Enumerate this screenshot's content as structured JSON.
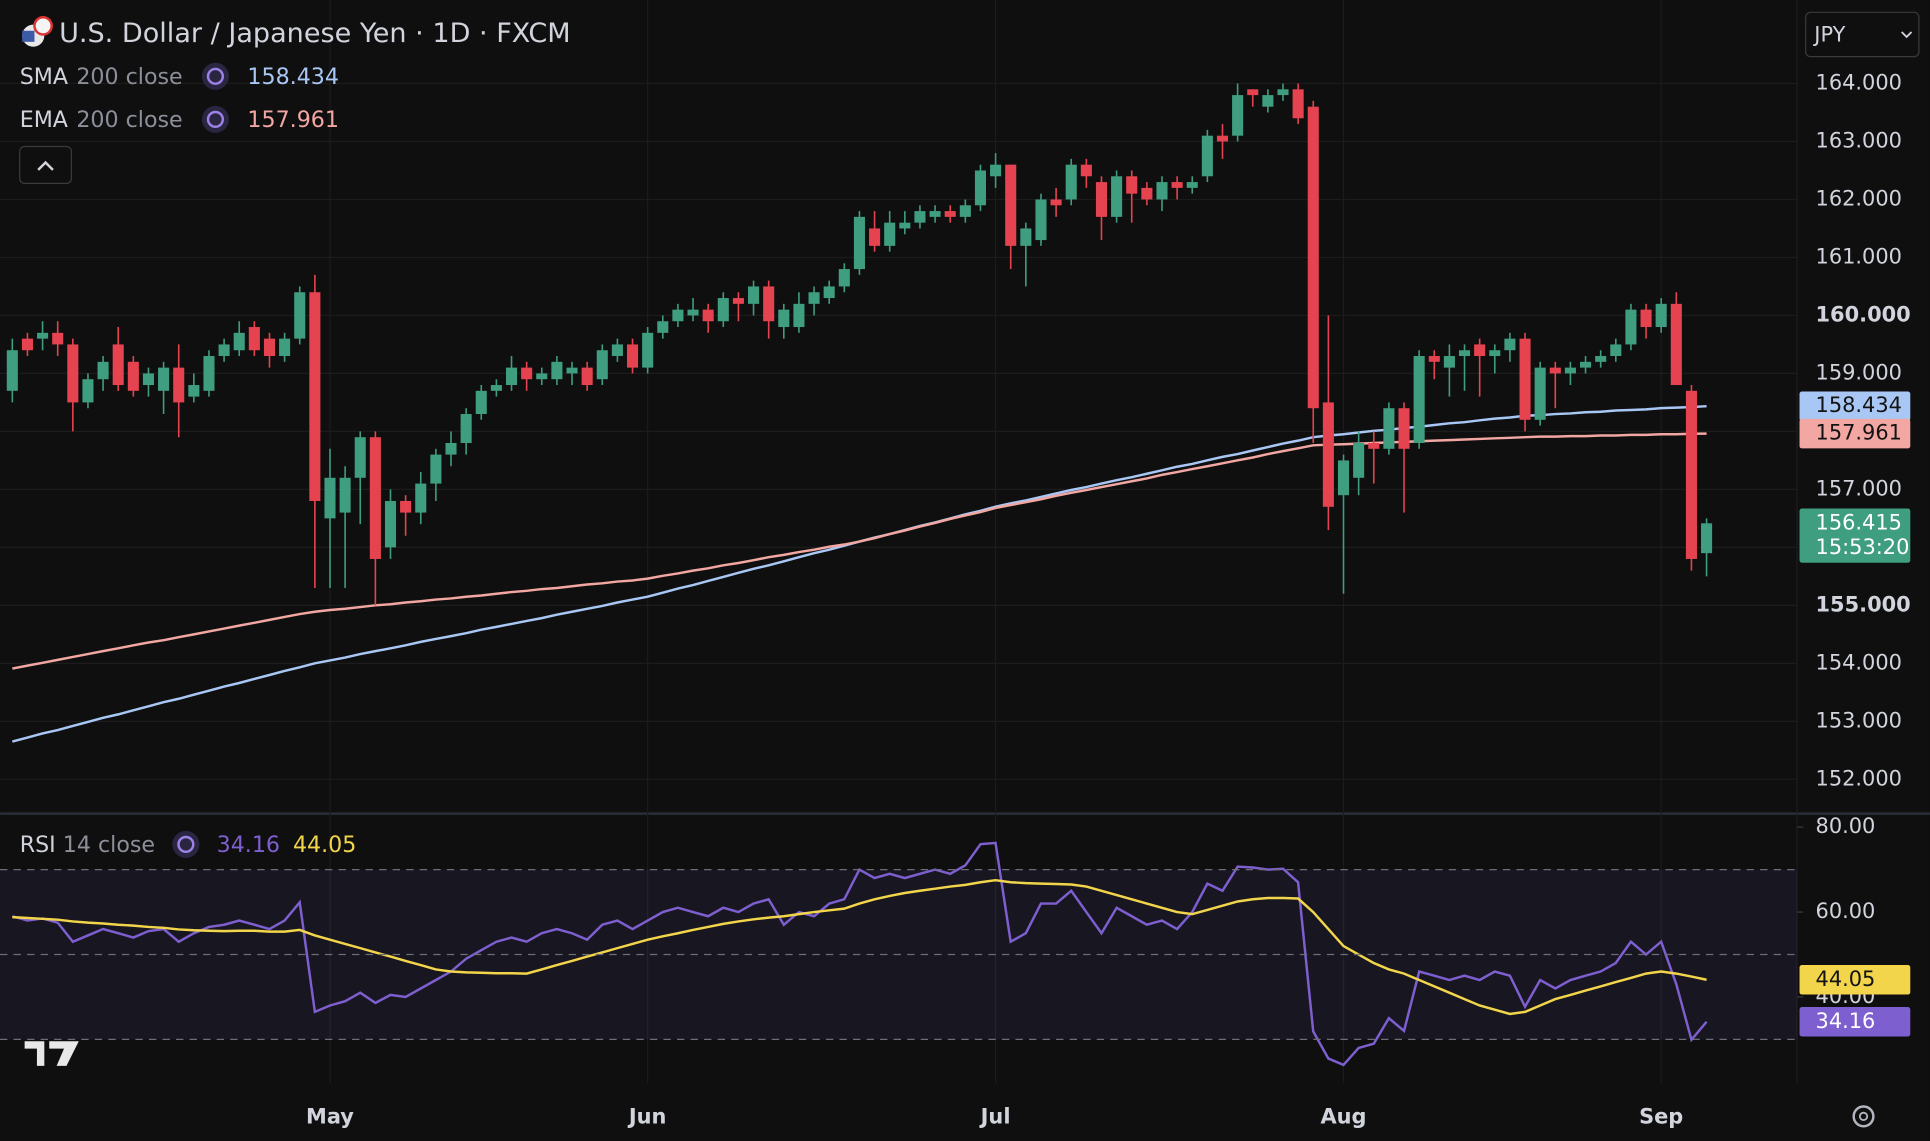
{
  "chart_data": {
    "type": "candlestick",
    "title": "U.S. Dollar / Japanese Yen · 1D · FXCM",
    "currency": "JPY",
    "countdown": "15:53:20",
    "up_color": "#3f9d80",
    "down_color": "#e5434f",
    "grid": true,
    "ylim": [
      151.43,
      165.44
    ],
    "yticks": [
      {
        "value": 152,
        "label": "152.000"
      },
      {
        "value": 153,
        "label": "153.000"
      },
      {
        "value": 154,
        "label": "154.000"
      },
      {
        "value": 155,
        "label": "155.000"
      },
      {
        "value": 156,
        "label": "156.000"
      },
      {
        "value": 157,
        "label": "157.000"
      },
      {
        "value": 158,
        "label": "158.000"
      },
      {
        "value": 159,
        "label": "159.000"
      },
      {
        "value": 160,
        "label": "160.000"
      },
      {
        "value": 161,
        "label": "161.000"
      },
      {
        "value": 162,
        "label": "162.000"
      },
      {
        "value": 163,
        "label": "163.000"
      },
      {
        "value": 164,
        "label": "164.000"
      }
    ],
    "categories": [
      null,
      null,
      null,
      null,
      null,
      null,
      null,
      null,
      null,
      null,
      null,
      null,
      null,
      null,
      null,
      null,
      null,
      null,
      null,
      null,
      null,
      "May",
      null,
      null,
      null,
      null,
      null,
      null,
      null,
      null,
      null,
      null,
      null,
      null,
      null,
      null,
      null,
      null,
      null,
      null,
      null,
      null,
      "Jun",
      null,
      null,
      null,
      null,
      null,
      null,
      null,
      null,
      null,
      null,
      null,
      null,
      null,
      null,
      null,
      null,
      null,
      null,
      null,
      null,
      null,
      null,
      "Jul",
      null,
      null,
      null,
      null,
      null,
      null,
      null,
      null,
      null,
      null,
      null,
      null,
      null,
      null,
      null,
      null,
      null,
      null,
      null,
      null,
      null,
      null,
      "Aug",
      null,
      null,
      null,
      null,
      null,
      null,
      null,
      null,
      null,
      null,
      null,
      null,
      null,
      null,
      null,
      null,
      null,
      null,
      null,
      null,
      "Sep",
      null,
      null,
      null
    ],
    "open": [
      158.7,
      159.6,
      159.6,
      159.7,
      159.5,
      158.5,
      158.9,
      159.5,
      159.2,
      158.8,
      158.7,
      159.1,
      158.6,
      158.7,
      159.3,
      159.4,
      159.8,
      159.6,
      159.3,
      159.6,
      160.4,
      156.5,
      156.6,
      157.2,
      157.9,
      156.0,
      156.8,
      156.6,
      157.1,
      157.6,
      157.8,
      158.3,
      158.7,
      158.8,
      159.1,
      158.9,
      158.9,
      159.0,
      159.1,
      158.9,
      159.3,
      159.5,
      159.1,
      159.7,
      159.9,
      160.0,
      160.1,
      159.9,
      160.3,
      160.2,
      160.5,
      159.8,
      159.8,
      160.2,
      160.3,
      160.5,
      160.8,
      161.5,
      161.2,
      161.5,
      161.6,
      161.7,
      161.8,
      161.7,
      161.9,
      162.4,
      162.6,
      161.2,
      161.3,
      162.0,
      162.0,
      162.6,
      162.3,
      161.7,
      162.4,
      162.2,
      162.0,
      162.3,
      162.2,
      162.4,
      163.1,
      163.1,
      163.9,
      163.6,
      163.8,
      163.9,
      163.6,
      158.5,
      156.9,
      157.2,
      157.8,
      157.7,
      158.4,
      157.8,
      159.3,
      159.1,
      159.3,
      159.5,
      159.3,
      159.4,
      159.6,
      158.2,
      159.1,
      159.0,
      159.1,
      159.2,
      159.3,
      159.5,
      160.1,
      159.8,
      160.2,
      158.7,
      155.9
    ],
    "high": [
      159.6,
      159.7,
      159.9,
      159.9,
      159.6,
      159.0,
      159.3,
      159.8,
      159.3,
      159.1,
      159.2,
      159.5,
      159.0,
      159.4,
      159.6,
      159.9,
      159.9,
      159.7,
      159.7,
      160.5,
      160.7,
      157.7,
      157.4,
      158.0,
      158.0,
      157.0,
      156.9,
      157.3,
      157.7,
      158.0,
      158.4,
      158.8,
      158.9,
      159.3,
      159.2,
      159.1,
      159.3,
      159.2,
      159.2,
      159.5,
      159.6,
      159.6,
      159.8,
      160.0,
      160.2,
      160.3,
      160.2,
      160.4,
      160.4,
      160.6,
      160.6,
      160.2,
      160.4,
      160.5,
      160.6,
      160.9,
      161.8,
      161.8,
      161.8,
      161.8,
      161.9,
      161.9,
      161.9,
      162.0,
      162.6,
      162.8,
      162.6,
      161.6,
      162.1,
      162.2,
      162.7,
      162.7,
      162.4,
      162.5,
      162.5,
      162.3,
      162.4,
      162.4,
      162.4,
      163.2,
      163.3,
      164.0,
      163.9,
      163.9,
      164.0,
      164.0,
      163.7,
      160.0,
      157.6,
      158.0,
      158.0,
      158.5,
      158.5,
      159.4,
      159.4,
      159.5,
      159.5,
      159.6,
      159.5,
      159.7,
      159.7,
      159.2,
      159.2,
      159.2,
      159.3,
      159.4,
      159.6,
      160.2,
      160.2,
      160.3,
      160.4,
      158.8,
      156.5
    ],
    "low": [
      158.5,
      159.3,
      159.4,
      159.3,
      158.0,
      158.4,
      158.7,
      158.7,
      158.6,
      158.6,
      158.3,
      157.9,
      158.5,
      158.6,
      159.2,
      159.3,
      159.3,
      159.1,
      159.2,
      159.5,
      155.3,
      155.3,
      155.3,
      156.4,
      155.0,
      155.8,
      156.2,
      156.4,
      156.8,
      157.4,
      157.6,
      158.2,
      158.6,
      158.7,
      158.7,
      158.8,
      158.8,
      158.8,
      158.7,
      158.8,
      159.2,
      159.0,
      159.0,
      159.6,
      159.8,
      159.9,
      159.7,
      159.8,
      159.9,
      160.0,
      159.6,
      159.6,
      159.7,
      160.0,
      160.2,
      160.4,
      160.7,
      161.1,
      161.1,
      161.4,
      161.5,
      161.6,
      161.6,
      161.6,
      161.8,
      162.2,
      160.8,
      160.5,
      161.2,
      161.7,
      161.9,
      162.2,
      161.3,
      161.6,
      161.6,
      161.9,
      161.8,
      162.0,
      162.1,
      162.3,
      162.7,
      163.0,
      163.6,
      163.5,
      163.7,
      163.3,
      157.8,
      156.3,
      155.2,
      156.9,
      157.1,
      157.6,
      156.6,
      157.7,
      158.9,
      158.6,
      158.7,
      158.6,
      159.0,
      159.2,
      158.0,
      158.1,
      158.4,
      158.8,
      159.0,
      159.1,
      159.2,
      159.4,
      159.6,
      159.7,
      158.8,
      155.6,
      155.5
    ],
    "close": [
      159.4,
      159.4,
      159.7,
      159.5,
      158.5,
      158.9,
      159.2,
      158.8,
      158.7,
      159.0,
      159.1,
      158.5,
      158.8,
      159.3,
      159.5,
      159.7,
      159.4,
      159.3,
      159.6,
      160.4,
      156.8,
      157.2,
      157.2,
      157.9,
      155.8,
      156.8,
      156.6,
      157.1,
      157.6,
      157.8,
      158.3,
      158.7,
      158.8,
      159.1,
      158.9,
      159.0,
      159.2,
      159.1,
      158.8,
      159.4,
      159.5,
      159.1,
      159.7,
      159.9,
      160.1,
      160.1,
      159.9,
      160.3,
      160.2,
      160.5,
      159.9,
      160.1,
      160.2,
      160.4,
      160.5,
      160.8,
      161.7,
      161.2,
      161.6,
      161.6,
      161.8,
      161.8,
      161.7,
      161.9,
      162.5,
      162.6,
      161.2,
      161.5,
      162.0,
      161.9,
      162.6,
      162.4,
      161.7,
      162.4,
      162.1,
      162.0,
      162.3,
      162.2,
      162.3,
      163.1,
      163.0,
      163.8,
      163.8,
      163.8,
      163.9,
      163.4,
      158.4,
      156.7,
      157.5,
      157.8,
      157.7,
      158.4,
      157.7,
      159.3,
      159.2,
      159.3,
      159.4,
      159.3,
      159.4,
      159.6,
      158.2,
      159.1,
      159.0,
      159.1,
      159.2,
      159.3,
      159.5,
      160.1,
      159.8,
      160.2,
      158.8,
      155.8,
      156.415
    ],
    "overlays": [
      {
        "name": "SMA",
        "params": "200 close",
        "color": "#a9c7f5",
        "values": [
          152.65,
          152.72,
          152.79,
          152.85,
          152.92,
          152.99,
          153.06,
          153.12,
          153.19,
          153.26,
          153.33,
          153.39,
          153.46,
          153.53,
          153.6,
          153.66,
          153.73,
          153.8,
          153.87,
          153.93,
          154.0,
          154.05,
          154.1,
          154.16,
          154.21,
          154.26,
          154.31,
          154.37,
          154.42,
          154.47,
          154.52,
          154.58,
          154.63,
          154.68,
          154.73,
          154.78,
          154.84,
          154.89,
          154.94,
          154.99,
          155.05,
          155.1,
          155.15,
          155.22,
          155.29,
          155.35,
          155.42,
          155.49,
          155.56,
          155.63,
          155.69,
          155.76,
          155.83,
          155.9,
          155.96,
          156.03,
          156.1,
          156.17,
          156.23,
          156.3,
          156.37,
          156.43,
          156.5,
          156.57,
          156.63,
          156.7,
          156.76,
          156.81,
          156.87,
          156.93,
          156.99,
          157.04,
          157.1,
          157.16,
          157.21,
          157.27,
          157.33,
          157.39,
          157.44,
          157.5,
          157.56,
          157.61,
          157.67,
          157.73,
          157.79,
          157.84,
          157.9,
          157.93,
          157.95,
          157.98,
          158.01,
          158.03,
          158.06,
          158.08,
          158.11,
          158.14,
          158.16,
          158.19,
          158.22,
          158.24,
          158.27,
          158.28,
          158.3,
          158.31,
          158.33,
          158.34,
          158.36,
          158.37,
          158.38,
          158.4,
          158.41,
          158.42,
          158.434
        ]
      },
      {
        "name": "EMA",
        "params": "200 close",
        "color": "#f2a7a2",
        "values": [
          153.91,
          153.96,
          154.01,
          154.06,
          154.11,
          154.16,
          154.21,
          154.26,
          154.31,
          154.36,
          154.4,
          154.45,
          154.5,
          154.55,
          154.6,
          154.65,
          154.7,
          154.75,
          154.8,
          154.85,
          154.89,
          154.92,
          154.94,
          154.97,
          155.0,
          155.02,
          155.05,
          155.07,
          155.1,
          155.12,
          155.15,
          155.17,
          155.2,
          155.23,
          155.25,
          155.28,
          155.3,
          155.33,
          155.36,
          155.38,
          155.41,
          155.43,
          155.46,
          155.51,
          155.55,
          155.6,
          155.64,
          155.69,
          155.73,
          155.78,
          155.83,
          155.87,
          155.92,
          155.96,
          156.01,
          156.05,
          156.1,
          156.16,
          156.23,
          156.29,
          156.36,
          156.42,
          156.49,
          156.55,
          156.61,
          156.68,
          156.73,
          156.78,
          156.83,
          156.89,
          156.94,
          156.99,
          157.04,
          157.09,
          157.14,
          157.19,
          157.25,
          157.3,
          157.35,
          157.4,
          157.45,
          157.5,
          157.55,
          157.61,
          157.66,
          157.71,
          157.76,
          157.77,
          157.78,
          157.79,
          157.8,
          157.81,
          157.82,
          157.83,
          157.84,
          157.85,
          157.86,
          157.87,
          157.88,
          157.89,
          157.9,
          157.91,
          157.91,
          157.92,
          157.92,
          157.93,
          157.93,
          157.94,
          157.94,
          157.95,
          157.95,
          157.96,
          157.961
        ]
      }
    ],
    "indicator": {
      "type": "line",
      "name": "RSI",
      "params": "14 close",
      "ylim": [
        19.7,
        82.9
      ],
      "yticks": [
        {
          "value": 80,
          "label": "80.00"
        },
        {
          "value": 60,
          "label": "60.00"
        },
        {
          "value": 40,
          "label": "40.00"
        }
      ],
      "levels": [
        70,
        50,
        30
      ],
      "series": [
        {
          "color": "#7e5fd0",
          "values": [
            59,
            58,
            58.5,
            57.5,
            53,
            54.5,
            56,
            55,
            54,
            55.5,
            56,
            53,
            55,
            56.5,
            57,
            58,
            57,
            56,
            58,
            62.3,
            36.5,
            38,
            39,
            41,
            38.6,
            40.5,
            40,
            42,
            44,
            46,
            49,
            51,
            53,
            54,
            53,
            55,
            56,
            55,
            53.5,
            57,
            58,
            56,
            58,
            60,
            61,
            60,
            59,
            61,
            60,
            62,
            63,
            57,
            60,
            59,
            62,
            63,
            70,
            68,
            69,
            68,
            69,
            70,
            69,
            71,
            76,
            76.3,
            53,
            55,
            62,
            62,
            65,
            60,
            55,
            61,
            59,
            57,
            58,
            56,
            60,
            66.7,
            65,
            70.7,
            70.5,
            70,
            70.2,
            67,
            31.9,
            25.5,
            24,
            28,
            29,
            35,
            32,
            46,
            45,
            44,
            45,
            44,
            46,
            45,
            37.7,
            44,
            42,
            44,
            45,
            46,
            48,
            53,
            50,
            53,
            43,
            29.9,
            34.16
          ]
        },
        {
          "color": "#f2d54b",
          "values": [
            58.8,
            58.6,
            58.4,
            58.2,
            57.8,
            57.5,
            57.3,
            57,
            56.8,
            56.5,
            56.3,
            55.9,
            55.7,
            55.6,
            55.5,
            55.6,
            55.6,
            55.4,
            55.4,
            55.8,
            54.5,
            53.5,
            52.5,
            51.5,
            50.5,
            49.5,
            48.5,
            47.5,
            46.5,
            46,
            45.8,
            45.7,
            45.6,
            45.6,
            45.5,
            46.5,
            47.5,
            48.5,
            49.5,
            50.5,
            51.5,
            52.5,
            53.5,
            54.3,
            55,
            55.8,
            56.5,
            57.2,
            57.8,
            58.3,
            58.7,
            59,
            59.5,
            60,
            60.4,
            60.8,
            62,
            63,
            63.8,
            64.5,
            65,
            65.5,
            66,
            66.4,
            67,
            67.5,
            67,
            66.8,
            66.7,
            66.6,
            66.5,
            66,
            65,
            64,
            63,
            62,
            61,
            60,
            59.5,
            60.5,
            61.5,
            62.5,
            63,
            63.3,
            63.3,
            63.2,
            60,
            56,
            52,
            50,
            48,
            46.5,
            45.5,
            44,
            42.5,
            41,
            39.5,
            38,
            37,
            36,
            36.5,
            38,
            39.5,
            40.5,
            41.5,
            42.5,
            43.5,
            44.5,
            45.5,
            46,
            45.5,
            44.8,
            44.05
          ]
        }
      ]
    }
  }
}
